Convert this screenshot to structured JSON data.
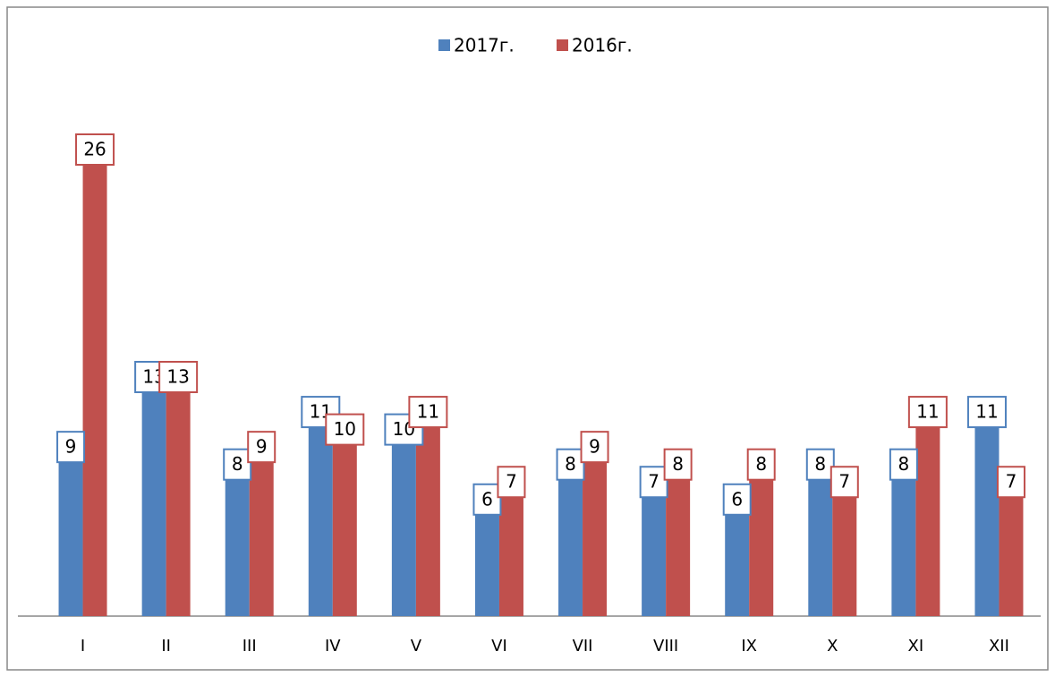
{
  "chart_data": {
    "type": "bar",
    "categories": [
      "I",
      "II",
      "III",
      "IV",
      "V",
      "VI",
      "VII",
      "VIII",
      "IX",
      "X",
      "XI",
      "XII"
    ],
    "series": [
      {
        "name": "2017г.",
        "color": "#4f81bd",
        "values": [
          9,
          13,
          8,
          11,
          10,
          6,
          8,
          7,
          6,
          8,
          8,
          11
        ]
      },
      {
        "name": "2016г.",
        "color": "#c0504d",
        "values": [
          26,
          13,
          9,
          10,
          11,
          7,
          9,
          8,
          8,
          7,
          11,
          7
        ]
      }
    ],
    "legend": "top"
  }
}
